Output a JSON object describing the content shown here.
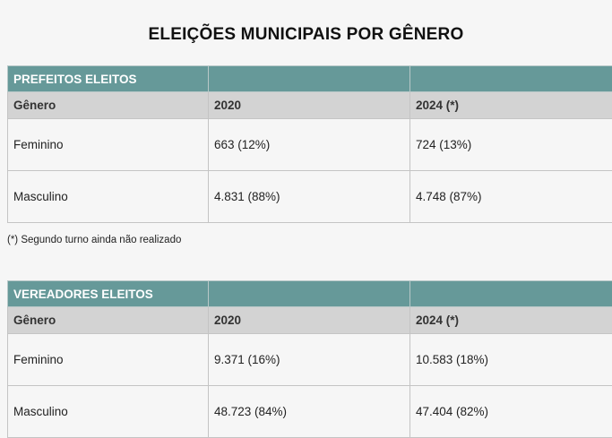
{
  "title": "ELEIÇÕES MUNICIPAIS POR GÊNERO",
  "tables": [
    {
      "caption": "PREFEITOS ELEITOS",
      "headers": [
        "Gênero",
        "2020",
        "2024 (*)"
      ],
      "rows": [
        [
          "Feminino",
          "663 (12%)",
          "724 (13%)"
        ],
        [
          "Masculino",
          "4.831 (88%)",
          "4.748 (87%)"
        ]
      ]
    },
    {
      "caption": "VEREADORES ELEITOS",
      "headers": [
        "Gênero",
        "2020",
        "2024 (*)"
      ],
      "rows": [
        [
          "Feminino",
          "9.371 (16%)",
          "10.583 (18%)"
        ],
        [
          "Masculino",
          "48.723 (84%)",
          "47.404 (82%)"
        ]
      ]
    }
  ],
  "footnote": "(*) Segundo turno ainda não realizado",
  "colors": {
    "header_bg": "#669999",
    "subheader_bg": "#d3d3d3",
    "page_bg": "#f6f6f6"
  }
}
